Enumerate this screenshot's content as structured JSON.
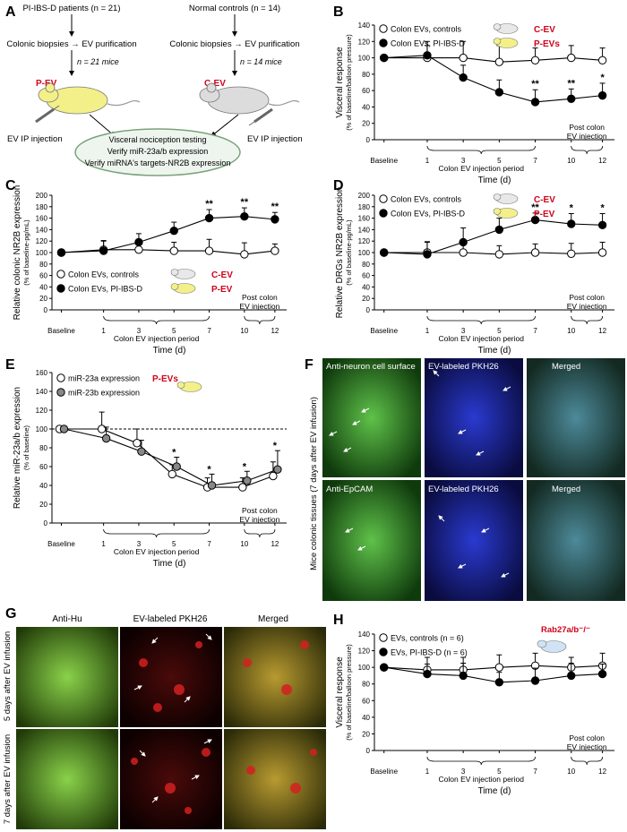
{
  "panel_labels": {
    "A": "A",
    "B": "B",
    "C": "C",
    "D": "D",
    "E": "E",
    "F": "F",
    "G": "G",
    "H": "H"
  },
  "schema": {
    "left_source": "PI-IBS-D patients (n = 21)",
    "right_source": "Normal controls (n = 14)",
    "biopsy_left": "Colonic biopsies → EV purification",
    "biopsy_right": "Colonic biopsies → EV purification",
    "mice_left": "n = 21 mice",
    "mice_right": "n = 14 mice",
    "tag_left": "P-EV",
    "tag_right": "C-EV",
    "inject_left": "EV IP injection",
    "inject_right": "EV IP injection",
    "outcome_1": "Visceral nociception testing",
    "outcome_2": "Verify miR-23a/b expression",
    "outcome_3": "Verify miRNA's targets-NR2B expression"
  },
  "common": {
    "xlabel": "Time (d)",
    "x_ticks": [
      "Baseline",
      "1",
      "3",
      "5",
      "7",
      "10",
      "12"
    ],
    "injection_period": "Colon EV injection period",
    "post_injection_1": "Post colon",
    "post_injection_2": "EV injection"
  },
  "colors": {
    "red_tag": "#d0021b",
    "mouse_yellow": "#f3f08a",
    "mouse_gray": "#dcdcdc",
    "mouse_blue": "#cfe3f5",
    "ellipse_fill": "#eef5ee",
    "ellipse_stroke": "#7aa27a"
  },
  "chart_data": [
    {
      "panel": "B",
      "type": "line",
      "ylabel": "Visceral response",
      "ylabel2": "(% of baseline/balloon pressure)",
      "ylim": [
        0,
        140
      ],
      "yticks": [
        0,
        20,
        40,
        60,
        80,
        100,
        120,
        140
      ],
      "x": [
        "Baseline",
        "1",
        "3",
        "5",
        "7",
        "10",
        "12"
      ],
      "series": [
        {
          "name": "Colon EVs, controls",
          "tag": "C-EV",
          "marker": "open",
          "values": [
            100,
            100,
            100,
            95,
            97,
            100,
            97
          ],
          "err": [
            0,
            20,
            20,
            20,
            15,
            15,
            15
          ]
        },
        {
          "name": "Colon EVs, PI-IBS-D",
          "tag": "P-EVs",
          "marker": "filled",
          "values": [
            100,
            103,
            76,
            58,
            46,
            50,
            54
          ],
          "err": [
            0,
            12,
            15,
            15,
            15,
            12,
            15
          ]
        }
      ],
      "sig": [
        {
          "x": "7",
          "label": "**"
        },
        {
          "x": "10",
          "label": "**"
        },
        {
          "x": "12",
          "label": "*"
        }
      ]
    },
    {
      "panel": "C",
      "type": "line",
      "ylabel": "Relative colonic NR2B expression",
      "ylabel2": "(% of baseline-pg/mL)",
      "ylim": [
        0,
        200
      ],
      "yticks": [
        0,
        20,
        40,
        60,
        80,
        100,
        120,
        140,
        160,
        180,
        200
      ],
      "x": [
        "Baseline",
        "1",
        "3",
        "5",
        "7",
        "10",
        "12"
      ],
      "series": [
        {
          "name": "Colon EVs, controls",
          "tag": "C-EV",
          "marker": "open",
          "values": [
            100,
            105,
            105,
            103,
            103,
            97,
            103
          ],
          "err": [
            0,
            15,
            18,
            15,
            20,
            20,
            12
          ]
        },
        {
          "name": "Colon EVs, PI-IBS-D",
          "tag": "P-EV",
          "marker": "filled",
          "values": [
            100,
            103,
            118,
            138,
            160,
            163,
            158
          ],
          "err": [
            0,
            18,
            15,
            15,
            15,
            15,
            12
          ]
        }
      ],
      "sig": [
        {
          "x": "7",
          "label": "**"
        },
        {
          "x": "10",
          "label": "**"
        },
        {
          "x": "12",
          "label": "**"
        }
      ]
    },
    {
      "panel": "D",
      "type": "line",
      "ylabel": "Relative DRGs NR2B expression",
      "ylabel2": "(% of baseline-pg/mL)",
      "ylim": [
        0,
        200
      ],
      "yticks": [
        0,
        20,
        40,
        60,
        80,
        100,
        120,
        140,
        160,
        180,
        200
      ],
      "x": [
        "Baseline",
        "1",
        "3",
        "5",
        "7",
        "10",
        "12"
      ],
      "series": [
        {
          "name": "Colon EVs, controls",
          "tag": "C-EV",
          "marker": "open",
          "values": [
            100,
            100,
            100,
            97,
            100,
            98,
            100
          ],
          "err": [
            0,
            18,
            15,
            15,
            15,
            18,
            18
          ]
        },
        {
          "name": "Colon EVs, PI-IBS-D",
          "tag": "P-EV",
          "marker": "filled",
          "values": [
            100,
            97,
            118,
            140,
            157,
            150,
            148
          ],
          "err": [
            0,
            22,
            25,
            20,
            12,
            18,
            20
          ]
        }
      ],
      "sig": [
        {
          "x": "7",
          "label": "**"
        },
        {
          "x": "10",
          "label": "*"
        },
        {
          "x": "12",
          "label": "*"
        }
      ]
    },
    {
      "panel": "E",
      "type": "line",
      "ylabel": "Relative miR-23a/b expression",
      "ylabel2": "(% of baseline)",
      "ylim": [
        0,
        160
      ],
      "yticks": [
        0,
        20,
        40,
        60,
        80,
        100,
        120,
        140,
        160
      ],
      "x": [
        "Baseline",
        "1",
        "3",
        "5",
        "7",
        "10",
        "12"
      ],
      "reference_line": 100,
      "series": [
        {
          "name": "miR-23a expression",
          "tag": "P-EVs",
          "marker": "open",
          "values": [
            100,
            100,
            85,
            52,
            38,
            38,
            50
          ],
          "err": [
            0,
            18,
            15,
            10,
            10,
            10,
            15
          ]
        },
        {
          "name": "miR-23b expression",
          "marker": "gray",
          "values": [
            100,
            90,
            76,
            60,
            40,
            45,
            57
          ],
          "err": [
            0,
            12,
            12,
            10,
            12,
            10,
            20
          ]
        }
      ],
      "sig": [
        {
          "x": "5",
          "label": "*"
        },
        {
          "x": "7",
          "label": "*"
        },
        {
          "x": "10",
          "label": "*"
        },
        {
          "x": "12",
          "label": "*"
        }
      ]
    },
    {
      "panel": "H",
      "type": "line",
      "ylabel": "Visceral response",
      "ylabel2": "(% of baseline/balloon pressure)",
      "ylim": [
        0,
        140
      ],
      "yticks": [
        0,
        20,
        40,
        60,
        80,
        100,
        120,
        140
      ],
      "x": [
        "Baseline",
        "1",
        "3",
        "5",
        "7",
        "10",
        "12"
      ],
      "tag": "Rab27a/b⁻/⁻",
      "series": [
        {
          "name": "EVs, controls (n = 6)",
          "marker": "open",
          "values": [
            100,
            97,
            97,
            100,
            102,
            100,
            102
          ],
          "err": [
            0,
            15,
            15,
            15,
            15,
            12,
            15
          ]
        },
        {
          "name": "EVs, PI-IBS-D (n = 6)",
          "marker": "filled",
          "values": [
            100,
            92,
            90,
            82,
            84,
            90,
            92
          ],
          "err": [
            0,
            12,
            15,
            12,
            15,
            15,
            12
          ]
        }
      ]
    }
  ],
  "micro_F": {
    "row1_titles": [
      "Anti-neuron cell surface",
      "EV-labeled PKH26",
      "Merged"
    ],
    "row2_titles": [
      "Anti-EpCAM",
      "EV-labeled PKH26",
      "Merged"
    ],
    "side_label": "Mice colonic tissues (7 days after EV infusion)"
  },
  "micro_G": {
    "titles": [
      "Anti-Hu",
      "EV-labeled PKH26",
      "Merged"
    ],
    "row1_side": "5 days  after EV infusion",
    "row2_side": "7 days  after EV infusion"
  }
}
